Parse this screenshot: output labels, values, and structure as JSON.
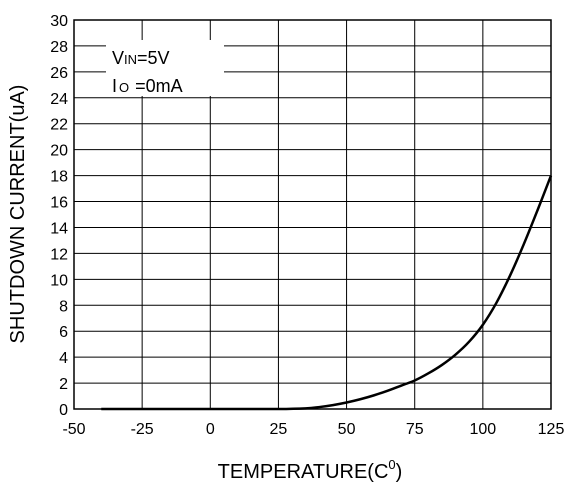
{
  "chart_data": {
    "type": "line",
    "title": "",
    "xlabel": "TEMPERATURE(C",
    "xlabel_sup": "0",
    "xlabel_close": ")",
    "ylabel": "SHUTDOWN CURRENT(uA)",
    "xlim": [
      -50,
      125
    ],
    "ylim": [
      0,
      30
    ],
    "x_ticks": [
      -50,
      -25,
      0,
      25,
      50,
      75,
      100,
      125
    ],
    "x_tick_labels": [
      "-50",
      "-25",
      "0",
      "25",
      "50",
      "75",
      "100",
      "125"
    ],
    "y_ticks": [
      0,
      2,
      4,
      6,
      8,
      10,
      12,
      14,
      16,
      18,
      20,
      22,
      24,
      26,
      28,
      30
    ],
    "y_tick_labels": [
      "0",
      "2",
      "4",
      "6",
      "8",
      "10",
      "12",
      "14",
      "16",
      "18",
      "20",
      "22",
      "24",
      "26",
      "28",
      "30"
    ],
    "grid": true,
    "legend_placement": "top-left",
    "annotations": {
      "line1_main": "V",
      "line1_sub": "IN",
      "line1_rest": "=5V",
      "line2_main": "I",
      "line2_sub": "O",
      "line2_rest": "=0mA"
    },
    "series": [
      {
        "x": [
          -40,
          -25,
          0,
          25,
          35,
          40,
          45,
          50,
          55,
          60,
          65,
          70,
          75,
          80,
          85,
          90,
          95,
          100,
          105,
          110,
          115,
          120,
          125
        ],
        "y": [
          0,
          0,
          0,
          0,
          0.05,
          0.15,
          0.3,
          0.5,
          0.75,
          1.05,
          1.4,
          1.8,
          2.2,
          2.75,
          3.4,
          4.2,
          5.2,
          6.5,
          8.2,
          10.3,
          12.7,
          15.3,
          18.0
        ]
      }
    ]
  }
}
